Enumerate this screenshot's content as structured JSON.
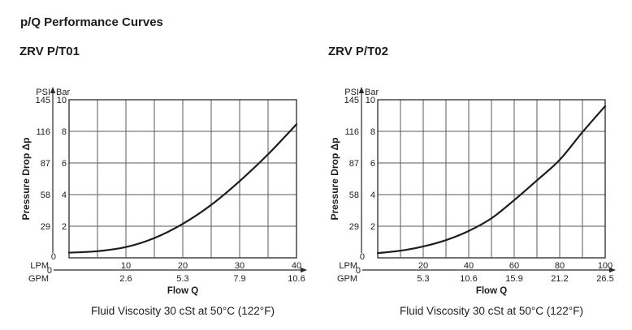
{
  "page": {
    "title": "p/Q Performance Curves",
    "background_color": "#ffffff",
    "text_color": "#1d1d1b",
    "grid_color": "#5a5a5a",
    "border_color": "#2a2a2a",
    "curve_color": "#1d1d1b"
  },
  "chart_data": [
    {
      "type": "line",
      "title": "ZRV P/T01",
      "xlabel": "Flow Q",
      "ylabel": "Pressure Drop Δp",
      "caption": "Fluid Viscosity 30 cSt at 50°C (122°F)",
      "grid": true,
      "legend": false,
      "x_axis": {
        "unit_top": "LPM",
        "unit_bottom": "GPM",
        "origin_label": "0",
        "lpm_min": 0,
        "lpm_max": 40,
        "grid_step_lpm": 5,
        "label_step_lpm": 10,
        "lpm_tick_labels": [
          "10",
          "20",
          "30",
          "40"
        ],
        "gpm_tick_labels": [
          "2.6",
          "5.3",
          "7.9",
          "10.6"
        ]
      },
      "y_axis": {
        "unit_left": "PSI",
        "unit_right": "Bar",
        "origin_label": "0",
        "bar_min": 0,
        "bar_max": 10,
        "grid_step_bar": 2,
        "psi_tick_labels": [
          "145",
          "116",
          "87",
          "58",
          "29"
        ],
        "bar_tick_labels": [
          "10",
          "8",
          "6",
          "4",
          "2"
        ]
      },
      "series": [
        {
          "name": "pressure-drop-curve",
          "x_lpm": [
            0,
            5,
            10,
            15,
            20,
            25,
            30,
            35,
            40
          ],
          "y_bar": [
            0.33,
            0.42,
            0.68,
            1.25,
            2.15,
            3.35,
            4.85,
            6.55,
            8.45
          ]
        }
      ]
    },
    {
      "type": "line",
      "title": "ZRV P/T02",
      "xlabel": "Flow Q",
      "ylabel": "Pressure Drop Δp",
      "caption": "Fluid Viscosity 30 cSt at 50°C (122°F)",
      "grid": true,
      "legend": false,
      "x_axis": {
        "unit_top": "LPM",
        "unit_bottom": "GPM",
        "origin_label": "0",
        "lpm_min": 0,
        "lpm_max": 100,
        "grid_step_lpm": 10,
        "label_step_lpm": 20,
        "lpm_tick_labels": [
          "20",
          "40",
          "60",
          "80",
          "100"
        ],
        "gpm_tick_labels": [
          "5.3",
          "10.6",
          "15.9",
          "21.2",
          "26.5"
        ]
      },
      "y_axis": {
        "unit_left": "PSI",
        "unit_right": "Bar",
        "origin_label": "0",
        "bar_min": 0,
        "bar_max": 10,
        "grid_step_bar": 2,
        "psi_tick_labels": [
          "145",
          "116",
          "87",
          "58",
          "29"
        ],
        "bar_tick_labels": [
          "10",
          "8",
          "6",
          "4",
          "2"
        ]
      },
      "series": [
        {
          "name": "pressure-drop-curve",
          "x_lpm": [
            0,
            10,
            20,
            30,
            40,
            50,
            60,
            70,
            80,
            90,
            100
          ],
          "y_bar": [
            0.3,
            0.45,
            0.72,
            1.12,
            1.7,
            2.5,
            3.65,
            4.9,
            6.2,
            7.95,
            9.6
          ]
        }
      ]
    }
  ]
}
